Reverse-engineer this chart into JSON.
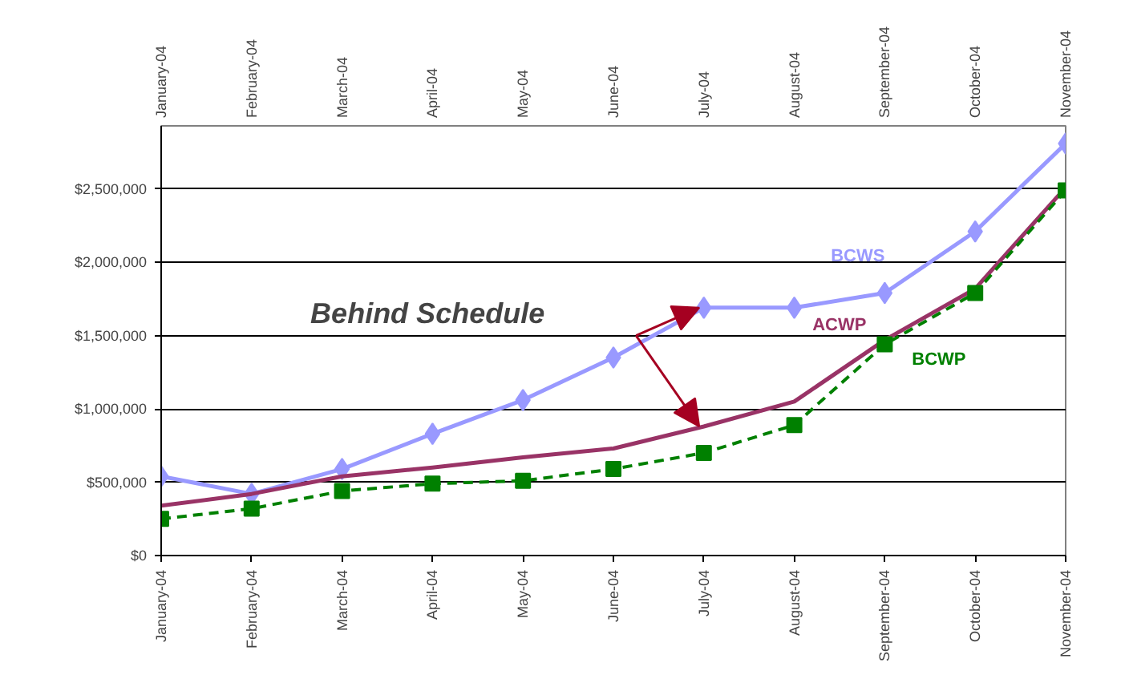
{
  "chart_data": {
    "type": "line",
    "annotations": [
      "Behind Schedule"
    ],
    "categories": [
      "January-04",
      "February-04",
      "March-04",
      "April-04",
      "May-04",
      "June-04",
      "July-04",
      "August-04",
      "September-04",
      "October-04",
      "November-04"
    ],
    "series": [
      {
        "name": "BCWS",
        "color": "#9999ff",
        "marker": "diamond",
        "line_style": "solid",
        "values": [
          540000,
          420000,
          590000,
          830000,
          1060000,
          1350000,
          1690000,
          1690000,
          1790000,
          2210000,
          2810000
        ]
      },
      {
        "name": "ACWP",
        "color": "#993366",
        "marker": "none",
        "line_style": "solid",
        "values": [
          340000,
          420000,
          540000,
          600000,
          670000,
          730000,
          880000,
          1050000,
          1470000,
          1820000,
          2510000
        ]
      },
      {
        "name": "BCWP",
        "color": "#008000",
        "marker": "square",
        "line_style": "dashed",
        "values": [
          250000,
          320000,
          440000,
          490000,
          510000,
          590000,
          700000,
          890000,
          1440000,
          1790000,
          2490000
        ]
      }
    ],
    "ylim": [
      0,
      2930000
    ],
    "yticks": [
      {
        "value": 0,
        "label": "$0"
      },
      {
        "value": 500000,
        "label": "$500,000"
      },
      {
        "value": 1000000,
        "label": "$1,000,000"
      },
      {
        "value": 1500000,
        "label": "$1,500,000"
      },
      {
        "value": 2000000,
        "label": "$2,000,000"
      },
      {
        "value": 2500000,
        "label": "$2,500,000"
      }
    ],
    "grid": "y"
  }
}
